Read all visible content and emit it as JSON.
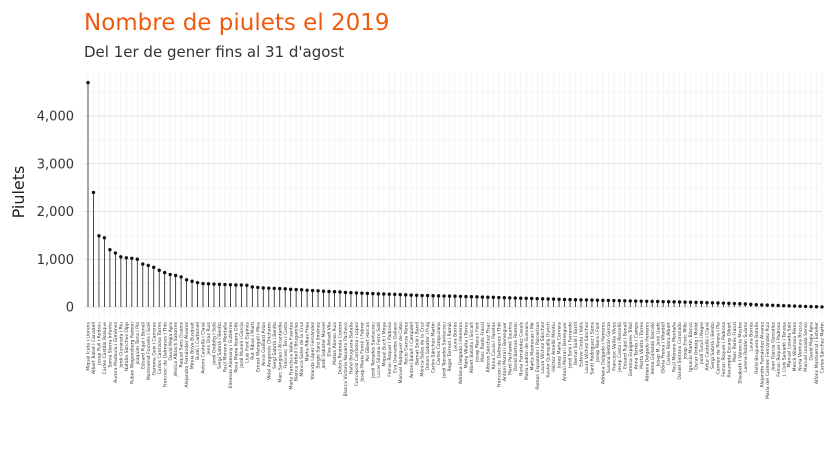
{
  "chart_data": {
    "type": "lollipop",
    "title": "Nombre de piulets el 2019",
    "subtitle": "Del 1er de gener fins al 31 d'agost",
    "ylabel": "Piulets",
    "xlabel": "",
    "ylim": [
      0,
      4900
    ],
    "yticks": [
      0,
      1000,
      2000,
      3000,
      4000
    ],
    "ytick_labels": [
      "0",
      "1,000",
      "2,000",
      "3,000",
      "4,000"
    ],
    "grid": true,
    "colors": {
      "title": "#f05a0e",
      "stem": "#222222",
      "dot": "#111111"
    },
    "categories": [
      "Miquel Iceta i Llorens",
      "Albert Batet i Canadell",
      "Josep Rull i Andreu",
      "Carles Castillo Rosique",
      "Sonia Sierra Infante",
      "Aurora Madaula i Giménez",
      "Jordi Ciuraneta i Riu",
      "Natàlia Sànchez Dipp",
      "Ruben Wagensberg Ramon",
      "Joaquim Torra i Pla",
      "Eduard Pujol i Bonell",
      "Montserrat Fornells i Solé",
      "Gemma Geis i Carreras",
      "Carlos Carrizosa Torres",
      "Francesc de Dalmases i Thió",
      "David Mejía Ayra",
      "Jéssica Albiach Satorres",
      "Raquel Sans Guerra",
      "Alejandro Fernández Álvarez",
      "Mireia Boya Busquet",
      "Budó i Carbonell",
      "Antoni Castellà i Clavé",
      "Jenn Díaz Ruiz",
      "Jordi Orobitg i Solé",
      "Sergi Sabrià i Benito",
      "Raúl Moreno Montaña",
      "Elisenda Alamany i Gutiérrez",
      "Rosa Maria Ibarra Ollé",
      "Jordi Munell i Garcia",
      "Lluís Font Espinós",
      "Rut Ribas i Martí",
      "Ernest Maragall i Mira",
      "Anna Gaillard Arias",
      "Vidal Aragonés Chicharro",
      "Sergi Sabrià i Benito",
      "Marc Sanglas i Alcantarilla",
      "Francesc Ten i Costa",
      "Maria Francisca Valle Fuentes",
      "Blanca Arbell i Brugarolas",
      "Mónica Sales de la Cruz",
      "Marta Ribas Frias",
      "Yolanda López Fernández",
      "Sergio Sanz Jiménez",
      "Jordi Sabater Moroel",
      "Elsa Artadi Vila",
      "Matías Alonso Ruiz",
      "Dolors Rovirola Coromí",
      "Blanca Victoria Navarro Pacheco",
      "Rafel Bruguera Batalla",
      "Concepció Carrizosa i Lopez",
      "Josep Maria Forné i Febrer",
      "Pol Gibert Horcas",
      "Jordi Terrades Santacreu",
      "Lucas Silvano Ferro Solé",
      "Miquel Buch i Moya",
      "Ferran Roquer i Padrosa",
      "Eva Granados Galiano",
      "Manuel Rodríguez de Cabo",
      "Rocío García Pérez",
      "Antoni Balart i Campdell",
      "Bernat Solé i Barril",
      "Mónica Sales de la Cruz",
      "Dolors Sabater i Puig",
      "Carlos Sánchez Martín",
      "Carles Campuzano",
      "Jordi Terrades Santacreu",
      "Roger Torrent i Ramió",
      "Laura Borràs",
      "Adriana Delgado i Herreros",
      "Maria Vilalta i Torres",
      "Albert Batalla i Siscart",
      "Josep Riera i Font",
      "Marc Parés Franzi",
      "Alfonso Sánchez Fisac",
      "Anna Caula i Paretas",
      "Francesc de Dalmases i Thió",
      "Antoni Morral i Berenguer",
      "Martí Pachamé Saurina",
      "David Bertran Román",
      "Nuria Fernández Casals",
      "Maria Ladrón de Guevara",
      "Marta Madrenas i Mir",
      "Ramon Espadaler i Parcerisas",
      "Laura Vílchez Sánchez",
      "Xavier Quinquillà Durich",
      "Héctor Amelló Montiu",
      "Josep Maria Cervera",
      "Antoni Morral i Berenguer",
      "Jordi Solé i Ferrando",
      "Bernat Solé i Barril",
      "Esteve Costa i Valls",
      "Laura Vílchez Sánchez",
      "Santi Rodríguez i Serra",
      "Josep Riera i Font",
      "Adriana Delgado i Herreros",
      "Susana Beltrán García",
      "Francesc Vallès Vives",
      "Josep Costa i Rosselló",
      "Eduard Pujol i Bonell",
      "Gemma Espigares Tribó",
      "Anna Tarrés i Campa",
      "Marta Vilalta i Torres",
      "Adriana Delgado Herreros",
      "Imma Gallardo Barceló",
      "Josep M. Jové Lladó",
      "Glòria Freixa i Vilardell",
      "Carles Riera Albert",
      "Raúl Moreno Montaña",
      "Daniel Serrano Coronado",
      "Josep Enric Millo",
      "Ignacio Martín Blanco",
      "Òscar Ordeig i Molist",
      "Jordi Turull i Negre",
      "Artur Castellà i Clavé",
      "Sergi Sabrià i Benito",
      "Carmen de Rivera i Pla",
      "Ferran Roquer i Padrosa",
      "Assumpta Escarp Gibert",
      "Marc Parés Franzi",
      "Elisabeth i Valencia Mestre",
      "Lorena Roldán Suárez",
      "Laura Borràs",
      "Rafel Bruguera Batalla",
      "Alejandro Fernández Álvarez",
      "Maria del Carmen Fernández Ruiz",
      "Joan García González",
      "Ferran Roquer i Padrosa",
      "J. Lluís Salvadó i Tenesa",
      "Manuel Losada Saiz",
      "Mercè Vilarrasa Pérez",
      "Nuria Ventura Brusca",
      "Manuel Losada Senso",
      "David Mejía Ayra",
      "Alfons Montserrat i Esteller",
      "Carles Sánchez Martín"
    ],
    "values": [
      4700,
      2400,
      1490,
      1450,
      1200,
      1130,
      1050,
      1030,
      1020,
      1000,
      900,
      870,
      830,
      770,
      720,
      680,
      660,
      630,
      570,
      540,
      510,
      490,
      485,
      480,
      475,
      470,
      465,
      462,
      460,
      455,
      420,
      410,
      400,
      395,
      390,
      385,
      380,
      370,
      365,
      360,
      350,
      345,
      340,
      330,
      325,
      320,
      315,
      305,
      300,
      295,
      290,
      285,
      280,
      275,
      272,
      268,
      265,
      260,
      255,
      250,
      245,
      240,
      238,
      236,
      234,
      230,
      228,
      225,
      222,
      218,
      215,
      212,
      208,
      205,
      202,
      198,
      195,
      192,
      188,
      185,
      182,
      178,
      175,
      172,
      168,
      165,
      162,
      158,
      155,
      152,
      150,
      148,
      145,
      142,
      140,
      138,
      135,
      132,
      130,
      128,
      125,
      122,
      120,
      118,
      115,
      112,
      110,
      108,
      105,
      102,
      100,
      97,
      94,
      90,
      87,
      84,
      80,
      76,
      72,
      68,
      64,
      55,
      48,
      44,
      40,
      36,
      32,
      28,
      24,
      20,
      16,
      12,
      8,
      5,
      2
    ]
  }
}
